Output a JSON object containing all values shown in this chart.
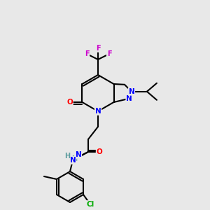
{
  "background_color": "#e8e8e8",
  "atom_colors": {
    "N": "#0000ff",
    "O": "#ff0000",
    "F": "#cc00cc",
    "Cl": "#00aa00",
    "C": "#000000",
    "H": "#5f9ea0"
  }
}
